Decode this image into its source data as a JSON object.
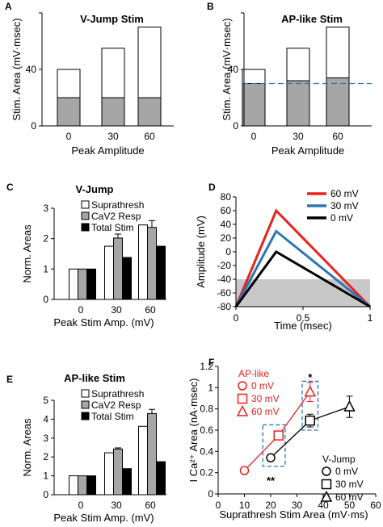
{
  "colors": {
    "gray_fill": "#a6a6a6",
    "red": "#e8221f",
    "blue": "#2e75b6",
    "black": "#000000",
    "dashed_blue": "#2e75b6",
    "shade": "#c8c8c8"
  },
  "chart_data": [
    {
      "id": "A",
      "letter": "A",
      "type": "bar",
      "stacked": true,
      "title": "V-Jump Stim",
      "xlabel": "Peak Amplitude",
      "ylabel": "Stim. Area (mV·msec)",
      "categories": [
        "0",
        "30",
        "60"
      ],
      "series": [
        {
          "values": [
            20,
            20,
            20
          ],
          "color": "#a6a6a6"
        },
        {
          "values": [
            20,
            35,
            50
          ],
          "color": "#ffffff"
        }
      ],
      "ylim": [
        0,
        80
      ],
      "yticks": [
        "0",
        "40"
      ],
      "ytick_values": [
        0,
        40
      ]
    },
    {
      "id": "B",
      "letter": "B",
      "type": "bar",
      "stacked": true,
      "title": "AP-like Stim",
      "xlabel": "Peak Amplitude",
      "ylabel": "Stim. Area (mV·msec)",
      "categories": [
        "0",
        "30",
        "60"
      ],
      "series": [
        {
          "values": [
            30,
            32,
            34
          ],
          "color": "#a6a6a6"
        },
        {
          "values": [
            10,
            23,
            36
          ],
          "color": "#ffffff"
        }
      ],
      "reference_line": {
        "y": 30,
        "style": "dashed"
      },
      "ylim": [
        0,
        80
      ],
      "yticks": [
        "0",
        "40"
      ],
      "ytick_values": [
        0,
        40
      ]
    },
    {
      "id": "C",
      "letter": "C",
      "type": "bar",
      "title": "V-Jump",
      "xlabel": "Peak Stim Amp. (mV)",
      "ylabel": "Norm. Areas",
      "categories": [
        "0",
        "30",
        "60"
      ],
      "series": [
        {
          "name": "Suprathresh",
          "values": [
            1.0,
            1.75,
            2.45
          ],
          "err": [
            0,
            0,
            0
          ],
          "color": "#ffffff"
        },
        {
          "name": "CaV2 Resp",
          "values": [
            1.0,
            2.02,
            2.37
          ],
          "err": [
            0,
            0.13,
            0.22
          ],
          "color": "#a6a6a6"
        },
        {
          "name": "Total Stim",
          "values": [
            1.0,
            1.38,
            1.75
          ],
          "err": [
            0,
            0,
            0
          ],
          "color": "#000000"
        }
      ],
      "ylim": [
        0,
        3
      ],
      "yticks": [
        "0",
        "1",
        "2",
        "3"
      ],
      "ytick_values": [
        0,
        1,
        2,
        3
      ]
    },
    {
      "id": "D",
      "letter": "D",
      "type": "line",
      "xlabel": "Time (msec)",
      "ylabel": "Amplitude (mV)",
      "series": [
        {
          "name": "60 mV",
          "x": [
            0,
            0.3,
            1
          ],
          "y": [
            -80,
            60,
            -80
          ],
          "color": "#e8221f"
        },
        {
          "name": "30 mV",
          "x": [
            0,
            0.3,
            1
          ],
          "y": [
            -80,
            30,
            -80
          ],
          "color": "#2e75b6"
        },
        {
          "name": "0 mV",
          "x": [
            0,
            0.3,
            1
          ],
          "y": [
            -80,
            0,
            -80
          ],
          "color": "#000000"
        }
      ],
      "shaded_band": {
        "y0": -80,
        "y1": -40
      },
      "xlim": [
        0,
        1
      ],
      "ylim": [
        -80,
        80
      ],
      "xticks": [
        "0",
        "0.5",
        "1"
      ],
      "xtick_values": [
        0,
        0.5,
        1
      ],
      "yticks": [
        "-80",
        "-60",
        "-40",
        "-20",
        "0",
        "20",
        "40",
        "60",
        "80"
      ],
      "ytick_values": [
        -80,
        -60,
        -40,
        -20,
        0,
        20,
        40,
        60,
        80
      ],
      "legend": "top-right"
    },
    {
      "id": "E",
      "letter": "E",
      "type": "bar",
      "title": "AP-like Stim",
      "xlabel": "Peak Stim Amp. (mV)",
      "ylabel": "Norm. Areas",
      "categories": [
        "0",
        "30",
        "60"
      ],
      "series": [
        {
          "name": "Suprathresh",
          "values": [
            1.0,
            2.22,
            3.62
          ],
          "err": [
            0,
            0,
            0
          ],
          "color": "#ffffff"
        },
        {
          "name": "CaV2 Resp",
          "values": [
            1.0,
            2.42,
            4.3
          ],
          "err": [
            0,
            0.06,
            0.22
          ],
          "color": "#a6a6a6"
        },
        {
          "name": "Total Stim",
          "values": [
            1.0,
            1.38,
            1.75
          ],
          "err": [
            0,
            0,
            0
          ],
          "color": "#000000"
        }
      ],
      "ylim": [
        0,
        5
      ],
      "yticks": [
        "0",
        "1",
        "2",
        "3",
        "4",
        "5"
      ],
      "ytick_values": [
        0,
        1,
        2,
        3,
        4,
        5
      ]
    },
    {
      "id": "F",
      "letter": "F",
      "type": "scatter",
      "xlabel": "Suprathresh Stim Area (mV·ms)",
      "ylabel": "I Ca²⁺ Area (nA·msec)",
      "series": [
        {
          "name": "AP-like",
          "x": [
            10,
            23,
            35
          ],
          "y": [
            0.22,
            0.55,
            0.96
          ],
          "err": [
            0,
            0,
            0.09
          ],
          "markers": [
            "circle",
            "square",
            "triangle"
          ],
          "labels": [
            "0 mV",
            "30 mV",
            "60 mV"
          ],
          "color": "#e8221f"
        },
        {
          "name": "V-Jump",
          "x": [
            20,
            35,
            50
          ],
          "y": [
            0.34,
            0.69,
            0.82
          ],
          "err": [
            0,
            0.06,
            0.1
          ],
          "markers": [
            "circle",
            "square",
            "triangle"
          ],
          "labels": [
            "0 mV",
            "30 mV",
            "60 mV"
          ],
          "color": "#000000"
        }
      ],
      "annotations": [
        {
          "text": "**",
          "x": 20,
          "y": 0.13
        },
        {
          "text": "*",
          "x": 35,
          "y": 1.1
        }
      ],
      "highlight_boxes": [
        {
          "x0": 17,
          "x1": 25.5,
          "y0": 0.26,
          "y1": 0.65
        },
        {
          "x0": 32,
          "x1": 38,
          "y0": 0.6,
          "y1": 1.06
        }
      ],
      "xlim": [
        0,
        60
      ],
      "ylim": [
        0,
        1.2
      ],
      "xticks": [
        "0",
        "10",
        "20",
        "30",
        "40",
        "50",
        "60"
      ],
      "xtick_values": [
        0,
        10,
        20,
        30,
        40,
        50,
        60
      ],
      "yticks": [
        "0",
        "0.2",
        "0.4",
        "0.6",
        "0.8",
        "1",
        "1.2"
      ],
      "ytick_values": [
        0,
        0.2,
        0.4,
        0.6,
        0.8,
        1,
        1.2
      ]
    }
  ]
}
